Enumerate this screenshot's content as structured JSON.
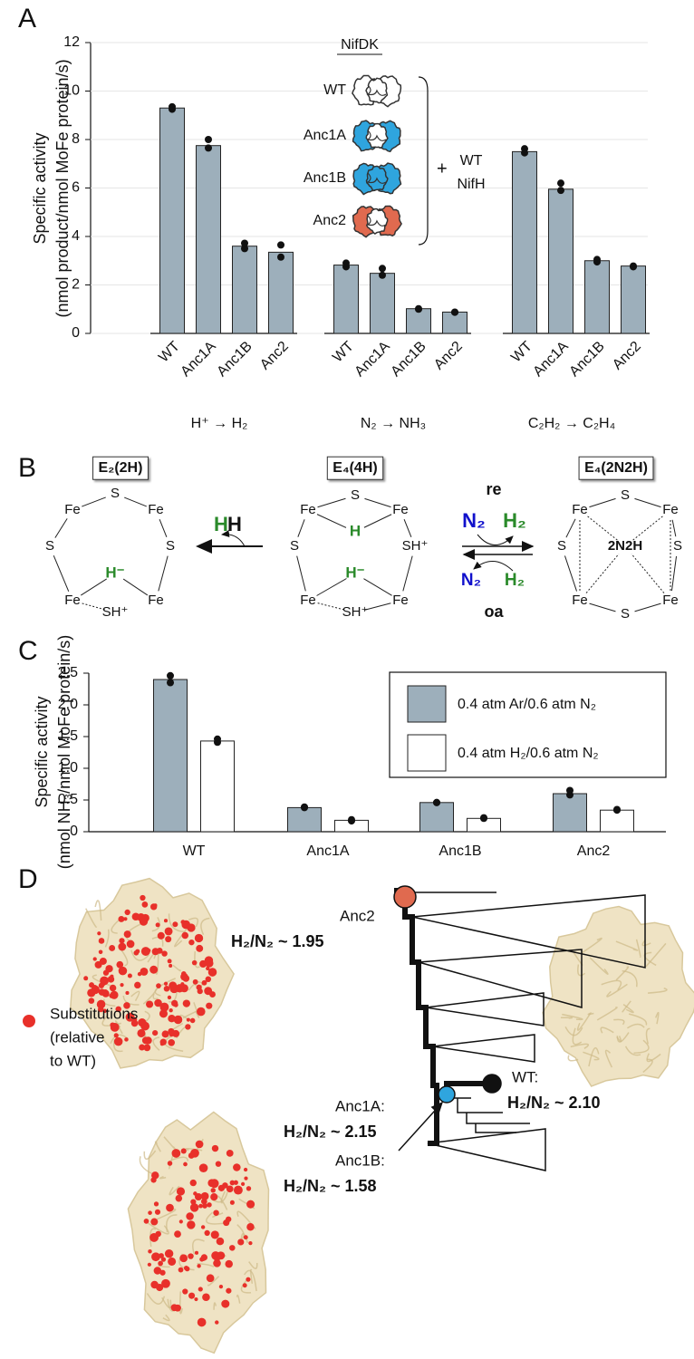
{
  "panels": [
    "A",
    "B",
    "C",
    "D"
  ],
  "chart_data": [
    {
      "type": "bar",
      "ylabel": [
        "Specific activity",
        "(nmol product/nmol MoFe protein/s)"
      ],
      "categories": [
        "WT",
        "Anc1A",
        "Anc1B",
        "Anc2"
      ],
      "series": [
        {
          "name": "H⁺ → H₂",
          "color": "#9dafbb",
          "values": [
            9.3,
            7.75,
            3.6,
            3.35
          ],
          "replicates": [
            [
              9.25,
              9.35
            ],
            [
              7.65,
              8.0
            ],
            [
              3.5,
              3.72
            ],
            [
              3.15,
              3.65
            ]
          ]
        },
        {
          "name": "N₂ → NH₃",
          "color": "#9dafbb",
          "values": [
            2.82,
            2.48,
            1.02,
            0.88
          ],
          "replicates": [
            [
              2.75,
              2.9
            ],
            [
              2.4,
              2.68
            ],
            [
              1.0,
              1.02
            ],
            [
              0.87,
              0.88
            ]
          ]
        },
        {
          "name": "C₂H₂ → C₂H₄",
          "color": "#9dafbb",
          "values": [
            7.5,
            5.95,
            3.0,
            2.78
          ],
          "replicates": [
            [
              7.45,
              7.62
            ],
            [
              5.9,
              6.2
            ],
            [
              2.95,
              3.05
            ],
            [
              2.75,
              2.78
            ]
          ]
        }
      ],
      "ylim": [
        0,
        12
      ],
      "yticks": [
        0,
        2,
        4,
        6,
        8,
        10,
        12
      ],
      "grid": true
    },
    {
      "type": "bar",
      "ylabel": [
        "Specific activity",
        "(nmol NH₃/nmol MoFe protein/s)"
      ],
      "categories": [
        "WT",
        "Anc1A",
        "Anc1B",
        "Anc2"
      ],
      "series": [
        {
          "name": "0.4 atm Ar/0.6 atm N₂",
          "color": "#9dafbb",
          "values": [
            2.4,
            0.38,
            0.46,
            0.6
          ],
          "replicates": [
            [
              2.35,
              2.46
            ],
            [
              0.38,
              0.39
            ],
            [
              0.46,
              0.46
            ],
            [
              0.58,
              0.65
            ]
          ]
        },
        {
          "name": "0.4 atm H₂/0.6 atm N₂",
          "color": "#ffffff",
          "values": [
            1.43,
            0.18,
            0.21,
            0.34
          ],
          "replicates": [
            [
              1.41,
              1.46
            ],
            [
              0.17,
              0.19
            ],
            [
              0.21,
              0.22
            ],
            [
              0.34,
              0.35
            ]
          ]
        }
      ],
      "ylim": [
        0,
        2.5
      ],
      "yticks": [
        0,
        0.5,
        {
          "value": 1,
          "label": "1.0"
        },
        1.5,
        {
          "value": 2,
          "label": "2.0"
        },
        2.5
      ],
      "grid": false,
      "legend": "upper right"
    }
  ],
  "inset": {
    "title": "NifDK",
    "labels": [
      "WT",
      "Anc1A",
      "Anc1B",
      "Anc2"
    ],
    "plus": "+",
    "partner": [
      "WT",
      "NifH"
    ]
  },
  "scheme": {
    "states": [
      {
        "title": "E₂(2H)",
        "atoms": [
          "Fe",
          "S",
          "Fe",
          "S",
          "S",
          "H⁻",
          "Fe",
          "SH⁺",
          "Fe"
        ]
      },
      {
        "title": "E₄(4H)",
        "atoms": [
          "Fe",
          "S",
          "Fe",
          "H",
          "S",
          "SH⁺",
          "H⁻",
          "Fe",
          "SH⁺",
          "Fe"
        ]
      },
      {
        "title": "E₄(2N2H)",
        "atoms": [
          "Fe",
          "S",
          "Fe",
          "S",
          "2N2H",
          "S",
          "Fe",
          "S",
          "Fe"
        ]
      }
    ],
    "release": [
      "H",
      "H"
    ],
    "forward": {
      "label": "re",
      "reactant": "N₂",
      "product": "H₂"
    },
    "reverse": {
      "label": "oa",
      "reactant": "H₂",
      "product": "N₂"
    }
  },
  "tree": {
    "nodes": [
      {
        "name": "Anc2",
        "ratio": "H₂/N₂ ~ 1.95"
      },
      {
        "name": "WT:",
        "ratio": "H₂/N₂ ~ 2.10"
      },
      {
        "name": "Anc1A:",
        "ratio": "H₂/N₂ ~ 2.15"
      },
      {
        "name": "Anc1B:",
        "ratio": "H₂/N₂ ~ 1.58"
      }
    ],
    "key": [
      "Substitutions",
      "(relative",
      "to WT)"
    ]
  }
}
